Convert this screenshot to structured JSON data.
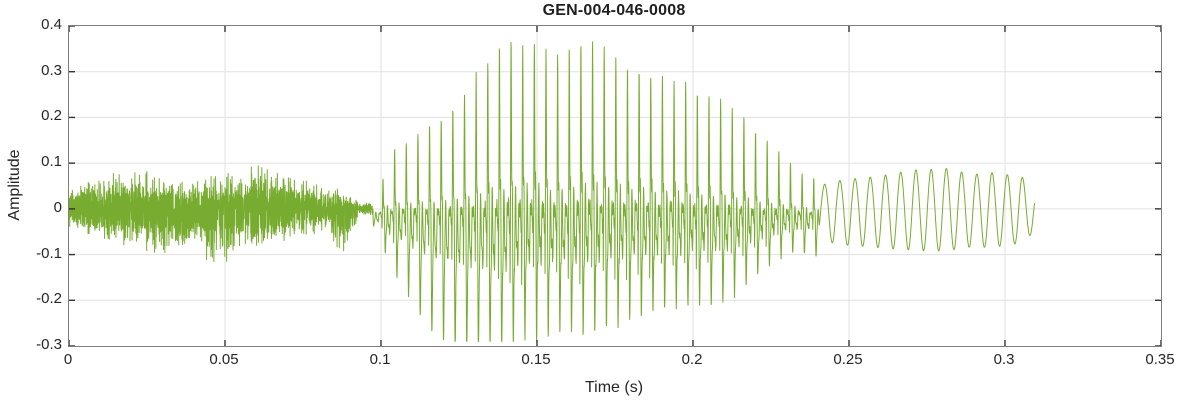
{
  "chart_data": {
    "type": "line",
    "title": "GEN-004-046-0008",
    "xlabel": "Time (s)",
    "ylabel": "Amplitude",
    "xlim": [
      0,
      0.35
    ],
    "ylim": [
      -0.3,
      0.4
    ],
    "xticks": [
      0,
      0.05,
      0.1,
      0.15,
      0.2,
      0.25,
      0.3,
      0.35
    ],
    "xtick_labels": [
      "0",
      "0.05",
      "0.1",
      "0.15",
      "0.2",
      "0.25",
      "0.3",
      "0.35"
    ],
    "yticks": [
      -0.3,
      -0.2,
      -0.1,
      0,
      0.1,
      0.2,
      0.3,
      0.4
    ],
    "ytick_labels": [
      "-0.3",
      "-0.2",
      "-0.1",
      "0",
      "0.1",
      "0.2",
      "0.3",
      "0.4"
    ],
    "grid": true,
    "legend": "none",
    "line_color": "#77AC30",
    "colors": {
      "grid": "#e0e0e0",
      "border": "#7f7f7f",
      "tick": "#333333",
      "text": "#262626",
      "background": "#ffffff"
    },
    "signal": {
      "description": "speech-like audio waveform: fricative noise burst, loud voiced vowel with sharp glottal pulses, decaying sinusoidal tail",
      "sample_step": 6e-05,
      "t_end": 0.3095,
      "segments": [
        {
          "name": "fricative-noise",
          "type": "noise",
          "t0": 0.0,
          "t1": 0.0935,
          "envelope": [
            [
              0.0,
              0.035,
              -0.035
            ],
            [
              0.004,
              0.055,
              -0.05
            ],
            [
              0.01,
              0.06,
              -0.065
            ],
            [
              0.02,
              0.088,
              -0.075
            ],
            [
              0.028,
              0.065,
              -0.09
            ],
            [
              0.04,
              0.06,
              -0.085
            ],
            [
              0.049,
              0.07,
              -0.125
            ],
            [
              0.055,
              0.07,
              -0.075
            ],
            [
              0.061,
              0.09,
              -0.08
            ],
            [
              0.068,
              0.07,
              -0.07
            ],
            [
              0.075,
              0.06,
              -0.06
            ],
            [
              0.082,
              0.05,
              -0.05
            ],
            [
              0.088,
              0.035,
              -0.1
            ],
            [
              0.0935,
              0.012,
              -0.012
            ]
          ]
        },
        {
          "name": "silence-gap",
          "type": "noise",
          "t0": 0.0935,
          "t1": 0.0975,
          "envelope": [
            [
              0.0935,
              0.012,
              -0.012
            ],
            [
              0.0975,
              0.015,
              -0.015
            ]
          ]
        },
        {
          "name": "voiced-vowel",
          "type": "voiced",
          "t0": 0.0975,
          "t1": 0.2405,
          "f0": 268,
          "envelope": [
            [
              0.0975,
              0.02,
              -0.02
            ],
            [
              0.1,
              0.06,
              -0.05
            ],
            [
              0.103,
              0.13,
              -0.09
            ],
            [
              0.107,
              0.15,
              -0.13
            ],
            [
              0.112,
              0.17,
              -0.19
            ],
            [
              0.116,
              0.19,
              -0.23
            ],
            [
              0.121,
              0.215,
              -0.25
            ],
            [
              0.126,
              0.245,
              -0.26
            ],
            [
              0.131,
              0.3,
              -0.26
            ],
            [
              0.136,
              0.34,
              -0.25
            ],
            [
              0.141,
              0.375,
              -0.24
            ],
            [
              0.146,
              0.355,
              -0.21
            ],
            [
              0.151,
              0.365,
              -0.205
            ],
            [
              0.156,
              0.335,
              -0.2
            ],
            [
              0.161,
              0.35,
              -0.2
            ],
            [
              0.166,
              0.37,
              -0.195
            ],
            [
              0.171,
              0.355,
              -0.19
            ],
            [
              0.176,
              0.33,
              -0.18
            ],
            [
              0.181,
              0.31,
              -0.17
            ],
            [
              0.186,
              0.3,
              -0.165
            ],
            [
              0.191,
              0.295,
              -0.158
            ],
            [
              0.196,
              0.28,
              -0.152
            ],
            [
              0.201,
              0.268,
              -0.15
            ],
            [
              0.206,
              0.25,
              -0.158
            ],
            [
              0.211,
              0.24,
              -0.148
            ],
            [
              0.216,
              0.21,
              -0.125
            ],
            [
              0.221,
              0.17,
              -0.1
            ],
            [
              0.226,
              0.145,
              -0.08
            ],
            [
              0.23,
              0.12,
              -0.065
            ],
            [
              0.234,
              0.09,
              -0.07
            ],
            [
              0.2405,
              0.07,
              -0.08
            ]
          ]
        },
        {
          "name": "tail-tone",
          "type": "tone",
          "t0": 0.2405,
          "t1": 0.3095,
          "freq": 205,
          "envelope": [
            [
              0.2405,
              0.05,
              -0.065
            ],
            [
              0.245,
              0.06,
              -0.075
            ],
            [
              0.25,
              0.065,
              -0.08
            ],
            [
              0.255,
              0.068,
              -0.082
            ],
            [
              0.26,
              0.072,
              -0.085
            ],
            [
              0.265,
              0.078,
              -0.088
            ],
            [
              0.27,
              0.085,
              -0.09
            ],
            [
              0.275,
              0.085,
              -0.092
            ],
            [
              0.28,
              0.09,
              -0.092
            ],
            [
              0.285,
              0.082,
              -0.088
            ],
            [
              0.29,
              0.075,
              -0.082
            ],
            [
              0.295,
              0.08,
              -0.085
            ],
            [
              0.3,
              0.075,
              -0.08
            ],
            [
              0.305,
              0.072,
              -0.075
            ],
            [
              0.3095,
              0.045,
              -0.05
            ]
          ]
        }
      ]
    }
  }
}
